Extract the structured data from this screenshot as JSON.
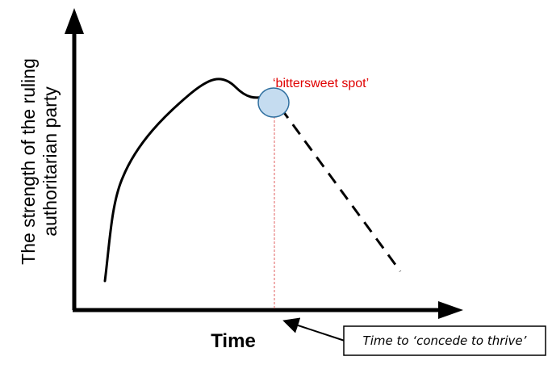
{
  "diagram": {
    "y_axis_label": {
      "line1": "The strength of the ruling",
      "line2": "authoritarian party"
    },
    "x_axis_label": "Time",
    "annotation": "‘bittersweet spot’",
    "callout": "Time to ‘concede to thrive’"
  },
  "colors": {
    "axis": "#000000",
    "curve": "#000000",
    "annotation": "#e00000",
    "marker_fill": "#c5dcf0",
    "marker_stroke": "#2f6f9f",
    "guide_line": "#e06060"
  }
}
